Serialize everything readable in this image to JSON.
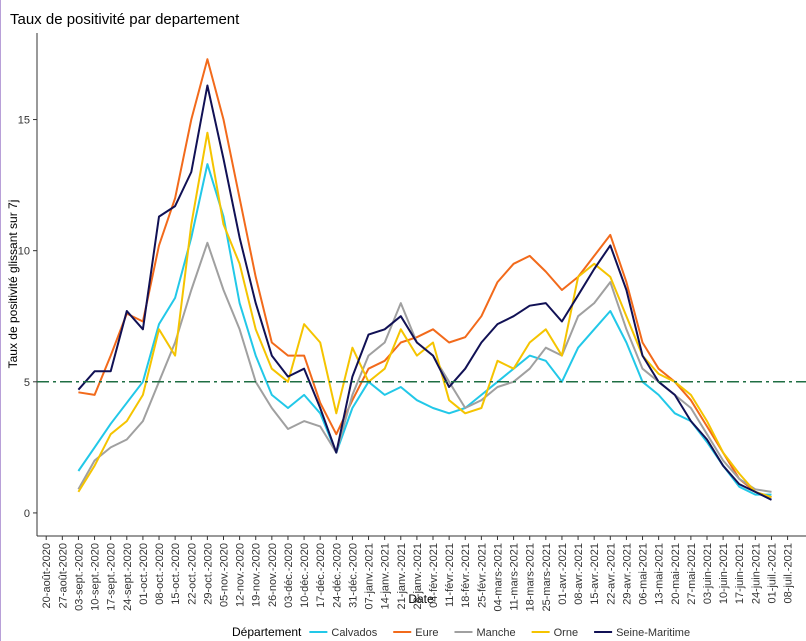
{
  "chart_data": {
    "type": "line",
    "title": "Taux de positivité par departement",
    "x_label": "Date",
    "y_label": "Taux de positivité glissant sur 7j",
    "legend_title": "Département",
    "legend_position": "bottom",
    "hline": 5,
    "hline_color": "#1f6e43",
    "x": [
      "2020-09-03",
      "2020-09-10",
      "2020-09-17",
      "2020-09-24",
      "2020-10-01",
      "2020-10-08",
      "2020-10-15",
      "2020-10-22",
      "2020-10-29",
      "2020-11-05",
      "2020-11-12",
      "2020-11-19",
      "2020-11-26",
      "2020-12-03",
      "2020-12-10",
      "2020-12-17",
      "2020-12-24",
      "2020-12-31",
      "2021-01-07",
      "2021-01-14",
      "2021-01-21",
      "2021-01-28",
      "2021-02-04",
      "2021-02-11",
      "2021-02-18",
      "2021-02-25",
      "2021-03-04",
      "2021-03-11",
      "2021-03-18",
      "2021-03-25",
      "2021-04-01",
      "2021-04-08",
      "2021-04-15",
      "2021-04-22",
      "2021-04-29",
      "2021-05-06",
      "2021-05-13",
      "2021-05-20",
      "2021-05-27",
      "2021-06-03",
      "2021-06-10",
      "2021-06-17",
      "2021-06-24",
      "2021-07-01"
    ],
    "xlim": [
      "2020-08-16",
      "2021-07-16"
    ],
    "xticks": [
      {
        "value": "2020-08-20",
        "label": "20-août-2020"
      },
      {
        "value": "2020-08-27",
        "label": "27-août-2020"
      },
      {
        "value": "2020-09-03",
        "label": "03-sept.-2020"
      },
      {
        "value": "2020-09-10",
        "label": "10-sept.-2020"
      },
      {
        "value": "2020-09-17",
        "label": "17-sept.-2020"
      },
      {
        "value": "2020-09-24",
        "label": "24-sept.-2020"
      },
      {
        "value": "2020-10-01",
        "label": "01-oct.-2020"
      },
      {
        "value": "2020-10-08",
        "label": "08-oct.-2020"
      },
      {
        "value": "2020-10-15",
        "label": "15-oct.-2020"
      },
      {
        "value": "2020-10-22",
        "label": "22-oct.-2020"
      },
      {
        "value": "2020-10-29",
        "label": "29-oct.-2020"
      },
      {
        "value": "2020-11-05",
        "label": "05-nov.-2020"
      },
      {
        "value": "2020-11-12",
        "label": "12-nov.-2020"
      },
      {
        "value": "2020-11-19",
        "label": "19-nov.-2020"
      },
      {
        "value": "2020-11-26",
        "label": "26-nov.-2020"
      },
      {
        "value": "2020-12-03",
        "label": "03-déc.-2020"
      },
      {
        "value": "2020-12-10",
        "label": "10-déc.-2020"
      },
      {
        "value": "2020-12-17",
        "label": "17-déc.-2020"
      },
      {
        "value": "2020-12-24",
        "label": "24-déc.-2020"
      },
      {
        "value": "2020-12-31",
        "label": "31-déc.-2020"
      },
      {
        "value": "2021-01-07",
        "label": "07-janv.-2021"
      },
      {
        "value": "2021-01-14",
        "label": "14-janv.-2021"
      },
      {
        "value": "2021-01-21",
        "label": "21-janv.-2021"
      },
      {
        "value": "2021-01-28",
        "label": "28-janv.-2021"
      },
      {
        "value": "2021-02-04",
        "label": "04-févr.-2021"
      },
      {
        "value": "2021-02-11",
        "label": "11-févr.-2021"
      },
      {
        "value": "2021-02-18",
        "label": "18-févr.-2021"
      },
      {
        "value": "2021-02-25",
        "label": "25-févr.-2021"
      },
      {
        "value": "2021-03-04",
        "label": "04-mars-2021"
      },
      {
        "value": "2021-03-11",
        "label": "11-mars-2021"
      },
      {
        "value": "2021-03-18",
        "label": "18-mars-2021"
      },
      {
        "value": "2021-03-25",
        "label": "25-mars-2021"
      },
      {
        "value": "2021-04-01",
        "label": "01-avr.-2021"
      },
      {
        "value": "2021-04-08",
        "label": "08-avr.-2021"
      },
      {
        "value": "2021-04-15",
        "label": "15-avr.-2021"
      },
      {
        "value": "2021-04-22",
        "label": "22-avr.-2021"
      },
      {
        "value": "2021-04-29",
        "label": "29-avr.-2021"
      },
      {
        "value": "2021-05-06",
        "label": "06-mai-2021"
      },
      {
        "value": "2021-05-13",
        "label": "13-mai-2021"
      },
      {
        "value": "2021-05-20",
        "label": "20-mai-2021"
      },
      {
        "value": "2021-05-27",
        "label": "27-mai-2021"
      },
      {
        "value": "2021-06-03",
        "label": "03-juin-2021"
      },
      {
        "value": "2021-06-10",
        "label": "10-juin-2021"
      },
      {
        "value": "2021-06-17",
        "label": "17-juin-2021"
      },
      {
        "value": "2021-06-24",
        "label": "24-juin-2021"
      },
      {
        "value": "2021-07-01",
        "label": "01-juil.-2021"
      },
      {
        "value": "2021-07-08",
        "label": "08-juil.-2021"
      }
    ],
    "ylim": [
      -0.88,
      18.3
    ],
    "yticks": [
      0,
      5,
      10,
      15
    ],
    "series": [
      {
        "name": "Calvados",
        "color": "#22c8e8",
        "values": [
          1.6,
          2.5,
          3.4,
          4.2,
          5.0,
          7.2,
          8.2,
          10.5,
          13.3,
          11.3,
          8.0,
          6.0,
          4.5,
          4.0,
          4.5,
          3.8,
          2.3,
          4.0,
          5.0,
          4.5,
          4.8,
          4.3,
          4.0,
          3.8,
          4.0,
          4.5,
          5.0,
          5.5,
          6.0,
          5.8,
          5.0,
          6.3,
          7.0,
          7.7,
          6.5,
          5.0,
          4.5,
          3.8,
          3.5,
          2.7,
          1.8,
          1.0,
          0.7,
          0.7
        ]
      },
      {
        "name": "Eure",
        "color": "#f26a1b",
        "values": [
          4.6,
          4.5,
          6.0,
          7.6,
          7.3,
          10.2,
          12.0,
          15.0,
          17.3,
          15.0,
          12.0,
          9.0,
          6.5,
          6.0,
          6.0,
          4.2,
          3.0,
          4.3,
          5.5,
          5.8,
          6.5,
          6.7,
          7.0,
          6.5,
          6.7,
          7.5,
          8.8,
          9.5,
          9.8,
          9.2,
          8.5,
          9.0,
          9.8,
          10.6,
          8.8,
          6.5,
          5.5,
          5.0,
          4.3,
          3.3,
          2.3,
          1.3,
          0.8,
          0.6
        ]
      },
      {
        "name": "Manche",
        "color": "#a0a0a0",
        "values": [
          0.9,
          2.0,
          2.5,
          2.8,
          3.5,
          5.0,
          6.5,
          8.5,
          10.3,
          8.5,
          7.0,
          5.0,
          4.0,
          3.2,
          3.5,
          3.3,
          2.3,
          4.5,
          6.0,
          6.5,
          8.0,
          6.5,
          6.0,
          5.0,
          4.0,
          4.3,
          4.8,
          5.0,
          5.5,
          6.3,
          6.0,
          7.5,
          8.0,
          8.8,
          7.0,
          5.5,
          5.0,
          4.5,
          4.0,
          3.0,
          2.0,
          1.3,
          0.9,
          0.8
        ]
      },
      {
        "name": "Orne",
        "color": "#f5c400",
        "values": [
          0.8,
          1.8,
          3.0,
          3.5,
          4.5,
          7.0,
          6.0,
          11.0,
          14.5,
          11.0,
          9.5,
          7.0,
          5.5,
          5.0,
          7.2,
          6.5,
          3.8,
          6.3,
          5.0,
          5.5,
          7.0,
          6.0,
          6.5,
          4.3,
          3.8,
          4.0,
          5.8,
          5.5,
          6.5,
          7.0,
          6.0,
          9.0,
          9.5,
          9.0,
          7.5,
          6.0,
          5.3,
          5.0,
          4.5,
          3.5,
          2.3,
          1.5,
          0.8,
          0.6
        ]
      },
      {
        "name": "Seine-Maritime",
        "color": "#111155",
        "values": [
          4.7,
          5.4,
          5.4,
          7.7,
          7.0,
          11.3,
          11.7,
          13.0,
          16.3,
          13.5,
          10.5,
          8.0,
          6.0,
          5.2,
          5.5,
          4.0,
          2.3,
          5.2,
          6.8,
          7.0,
          7.5,
          6.5,
          6.0,
          4.8,
          5.5,
          6.5,
          7.2,
          7.5,
          7.9,
          8.0,
          7.3,
          8.3,
          9.3,
          10.2,
          8.5,
          6.0,
          5.0,
          4.5,
          3.5,
          2.8,
          1.8,
          1.1,
          0.8,
          0.5
        ]
      }
    ]
  }
}
